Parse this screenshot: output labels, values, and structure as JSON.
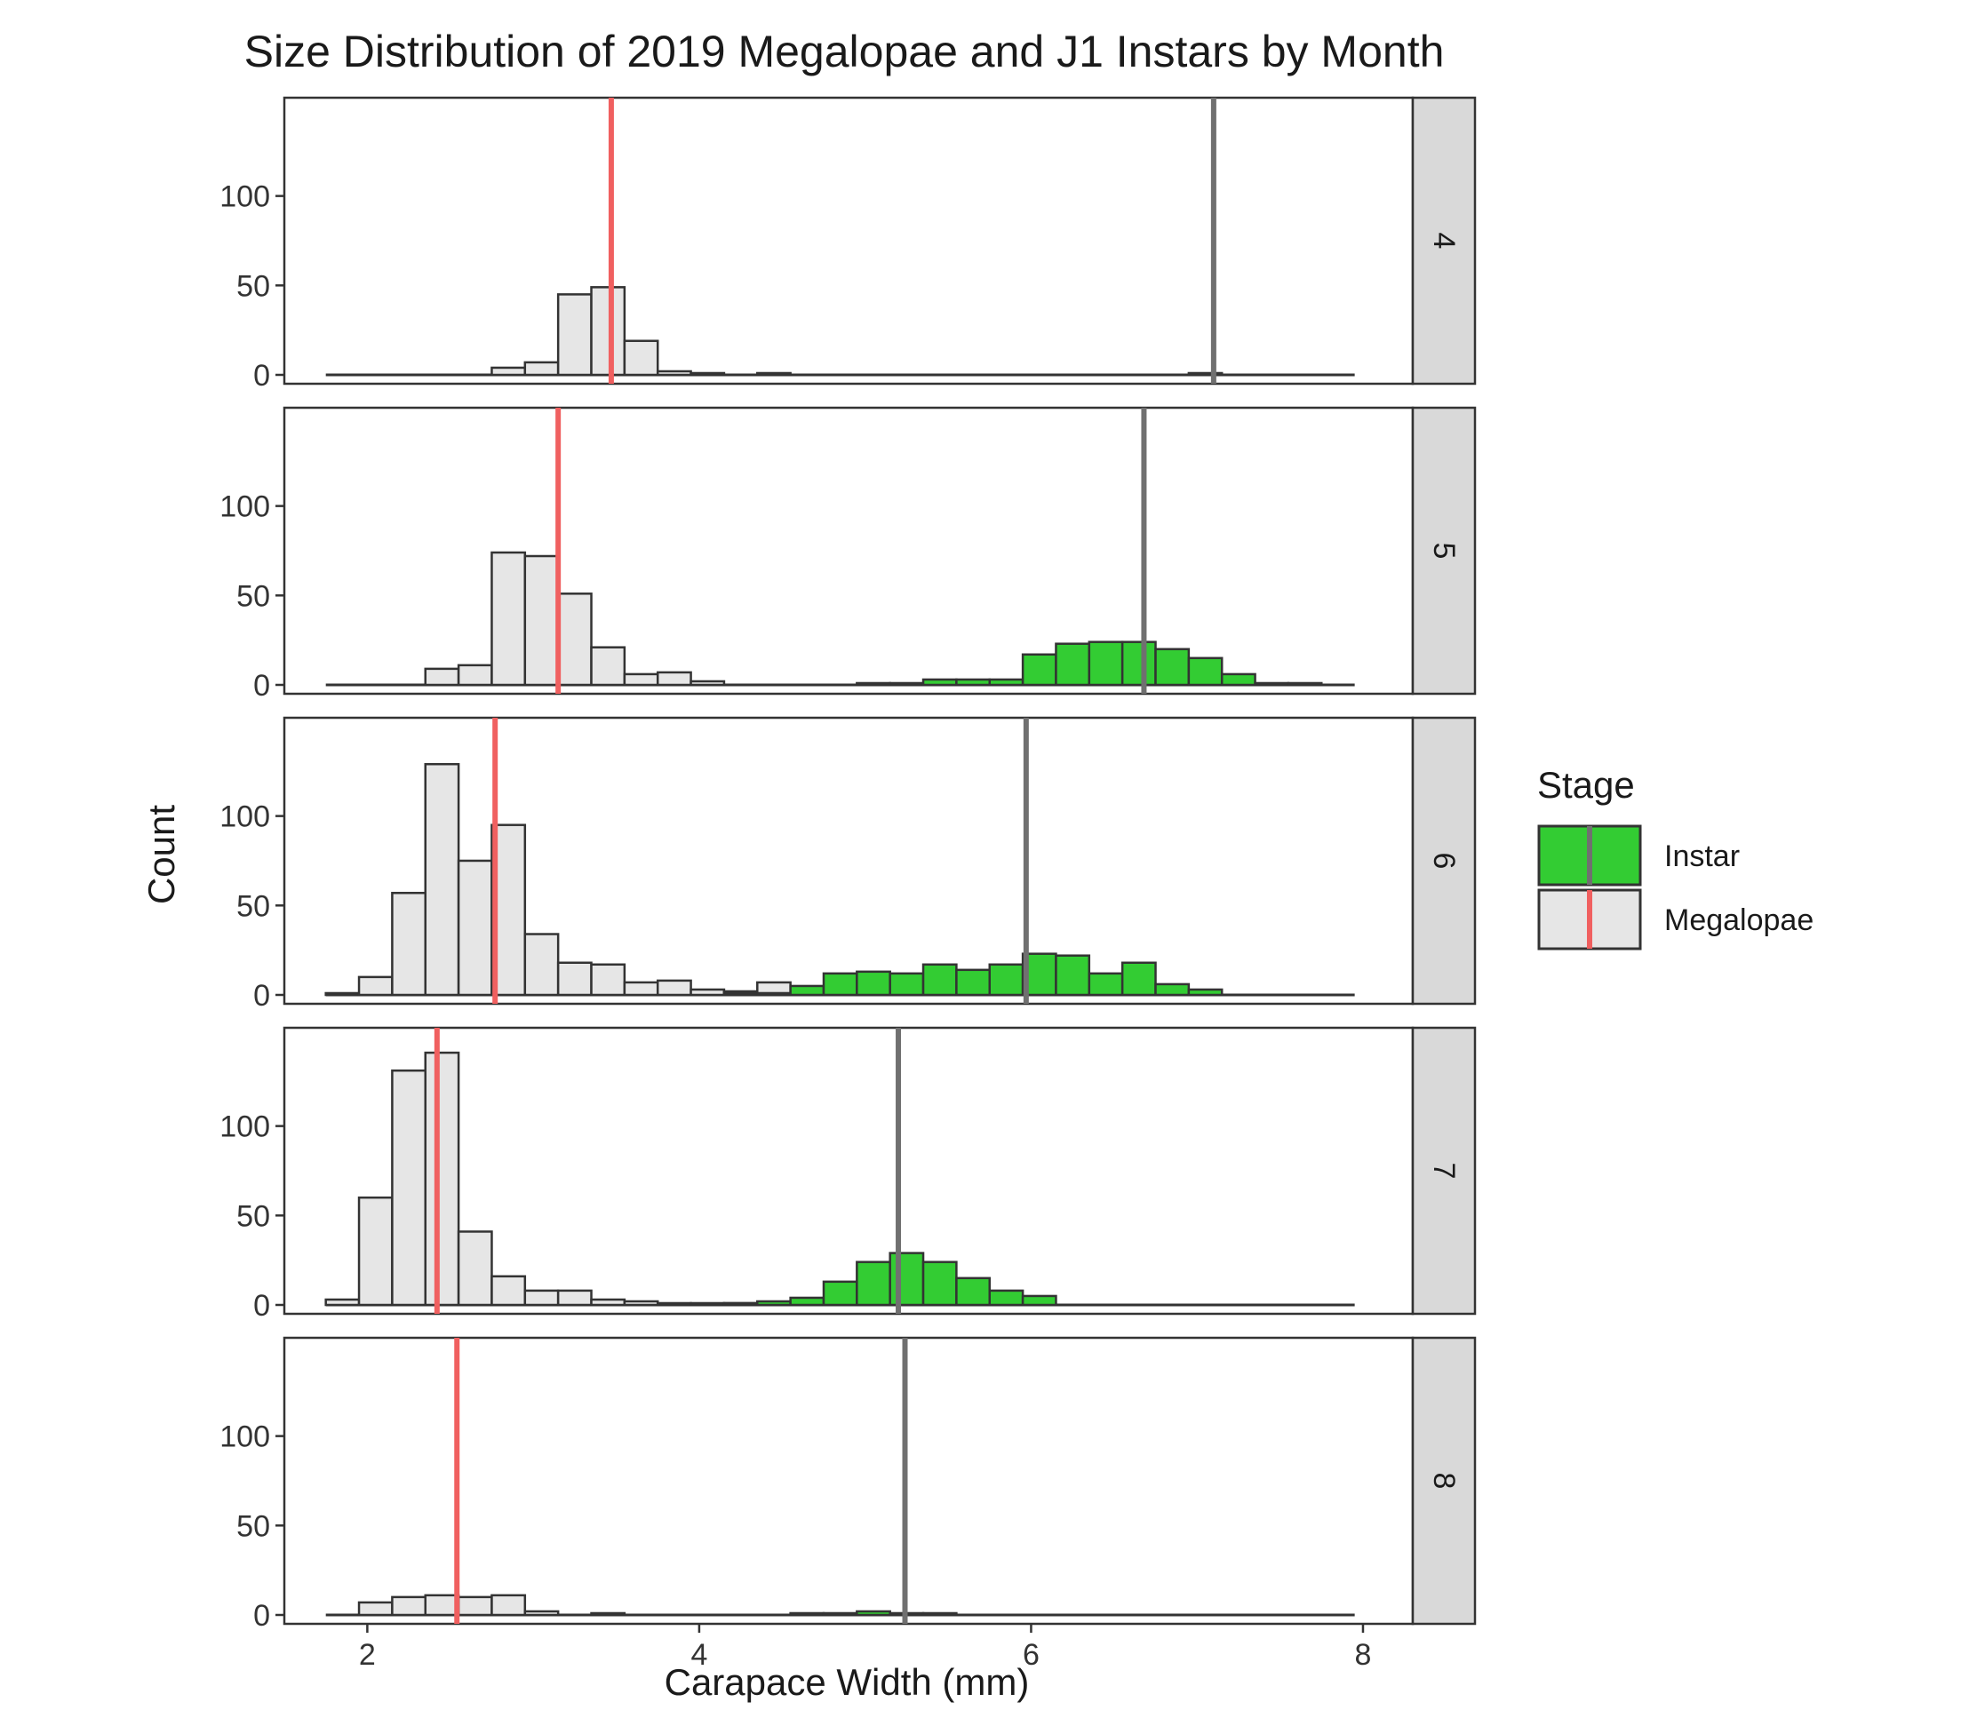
{
  "chart_data": {
    "type": "bar",
    "title": "Size Distribution of 2019 Megalopae and J1 Instars by Month",
    "xlabel": "Carapace Width (mm)",
    "ylabel": "Count",
    "xlim": [
      1.5,
      8.3
    ],
    "ylim": [
      0,
      145
    ],
    "x_ticks": [
      2,
      4,
      6,
      8
    ],
    "y_ticks": [
      0,
      50,
      100
    ],
    "bin_width": 0.2,
    "x_range": [
      1.75,
      7.95
    ],
    "colors": {
      "Instar": "#33cc33",
      "Megalopae": "#e6e6e6",
      "bar_outline": "#333333",
      "megalopae_mean_line": "#f06060",
      "instar_mean_line": "#707070",
      "strip": "#d9d9d9"
    },
    "legend": {
      "title": "Stage",
      "position": "right",
      "entries": [
        "Instar",
        "Megalopae"
      ]
    },
    "panels": [
      {
        "label": "4",
        "megalopae_mean": 3.47,
        "instar_mean": 7.1,
        "series": [
          {
            "name": "Megalopae",
            "bins": [
              [
                2.85,
                4
              ],
              [
                3.05,
                7
              ],
              [
                3.25,
                45
              ],
              [
                3.45,
                49
              ],
              [
                3.65,
                19
              ],
              [
                3.85,
                2
              ],
              [
                4.05,
                1
              ],
              [
                4.45,
                1
              ]
            ]
          },
          {
            "name": "Instar",
            "bins": [
              [
                7.05,
                1
              ]
            ]
          }
        ]
      },
      {
        "label": "5",
        "megalopae_mean": 3.15,
        "instar_mean": 6.68,
        "series": [
          {
            "name": "Megalopae",
            "bins": [
              [
                2.45,
                9
              ],
              [
                2.65,
                11
              ],
              [
                2.85,
                74
              ],
              [
                3.05,
                72
              ],
              [
                3.25,
                51
              ],
              [
                3.45,
                21
              ],
              [
                3.65,
                6
              ],
              [
                3.85,
                7
              ],
              [
                4.05,
                2
              ]
            ]
          },
          {
            "name": "Instar",
            "bins": [
              [
                5.05,
                1
              ],
              [
                5.25,
                1
              ],
              [
                5.45,
                3
              ],
              [
                5.65,
                3
              ],
              [
                5.85,
                3
              ],
              [
                6.05,
                17
              ],
              [
                6.25,
                23
              ],
              [
                6.45,
                24
              ],
              [
                6.65,
                24
              ],
              [
                6.85,
                20
              ],
              [
                7.05,
                15
              ],
              [
                7.25,
                6
              ],
              [
                7.45,
                1
              ],
              [
                7.65,
                1
              ]
            ]
          }
        ]
      },
      {
        "label": "6",
        "megalopae_mean": 2.77,
        "instar_mean": 5.97,
        "series": [
          {
            "name": "Megalopae",
            "bins": [
              [
                1.85,
                1
              ],
              [
                2.05,
                10
              ],
              [
                2.25,
                57
              ],
              [
                2.45,
                129
              ],
              [
                2.65,
                75
              ],
              [
                2.85,
                95
              ],
              [
                3.05,
                34
              ],
              [
                3.25,
                18
              ],
              [
                3.45,
                17
              ],
              [
                3.65,
                7
              ],
              [
                3.85,
                8
              ],
              [
                4.05,
                3
              ],
              [
                4.25,
                2
              ],
              [
                4.45,
                7
              ]
            ]
          },
          {
            "name": "Instar",
            "bins": [
              [
                4.25,
                1
              ],
              [
                4.45,
                1
              ],
              [
                4.65,
                5
              ],
              [
                4.85,
                12
              ],
              [
                5.05,
                13
              ],
              [
                5.25,
                12
              ],
              [
                5.45,
                17
              ],
              [
                5.65,
                14
              ],
              [
                5.85,
                17
              ],
              [
                6.05,
                23
              ],
              [
                6.25,
                22
              ],
              [
                6.45,
                12
              ],
              [
                6.65,
                18
              ],
              [
                6.85,
                6
              ],
              [
                7.05,
                3
              ]
            ]
          }
        ]
      },
      {
        "label": "7",
        "megalopae_mean": 2.42,
        "instar_mean": 5.2,
        "series": [
          {
            "name": "Megalopae",
            "bins": [
              [
                1.85,
                3
              ],
              [
                2.05,
                60
              ],
              [
                2.25,
                131
              ],
              [
                2.45,
                141
              ],
              [
                2.65,
                41
              ],
              [
                2.85,
                16
              ],
              [
                3.05,
                8
              ],
              [
                3.25,
                8
              ],
              [
                3.45,
                3
              ],
              [
                3.65,
                2
              ],
              [
                3.85,
                1
              ],
              [
                4.05,
                1
              ],
              [
                4.25,
                1
              ],
              [
                4.45,
                1
              ]
            ]
          },
          {
            "name": "Instar",
            "bins": [
              [
                4.25,
                1
              ],
              [
                4.45,
                2
              ],
              [
                4.65,
                4
              ],
              [
                4.85,
                13
              ],
              [
                5.05,
                24
              ],
              [
                5.25,
                29
              ],
              [
                5.45,
                24
              ],
              [
                5.65,
                15
              ],
              [
                5.85,
                8
              ],
              [
                6.05,
                5
              ]
            ]
          }
        ]
      },
      {
        "label": "8",
        "megalopae_mean": 2.54,
        "instar_mean": 5.24,
        "series": [
          {
            "name": "Megalopae",
            "bins": [
              [
                2.05,
                7
              ],
              [
                2.25,
                10
              ],
              [
                2.45,
                11
              ],
              [
                2.65,
                10
              ],
              [
                2.85,
                11
              ],
              [
                3.05,
                2
              ],
              [
                3.45,
                1
              ]
            ]
          },
          {
            "name": "Instar",
            "bins": [
              [
                4.65,
                1
              ],
              [
                4.85,
                1
              ],
              [
                5.05,
                2
              ],
              [
                5.25,
                1
              ],
              [
                5.45,
                1
              ]
            ]
          }
        ]
      }
    ]
  }
}
